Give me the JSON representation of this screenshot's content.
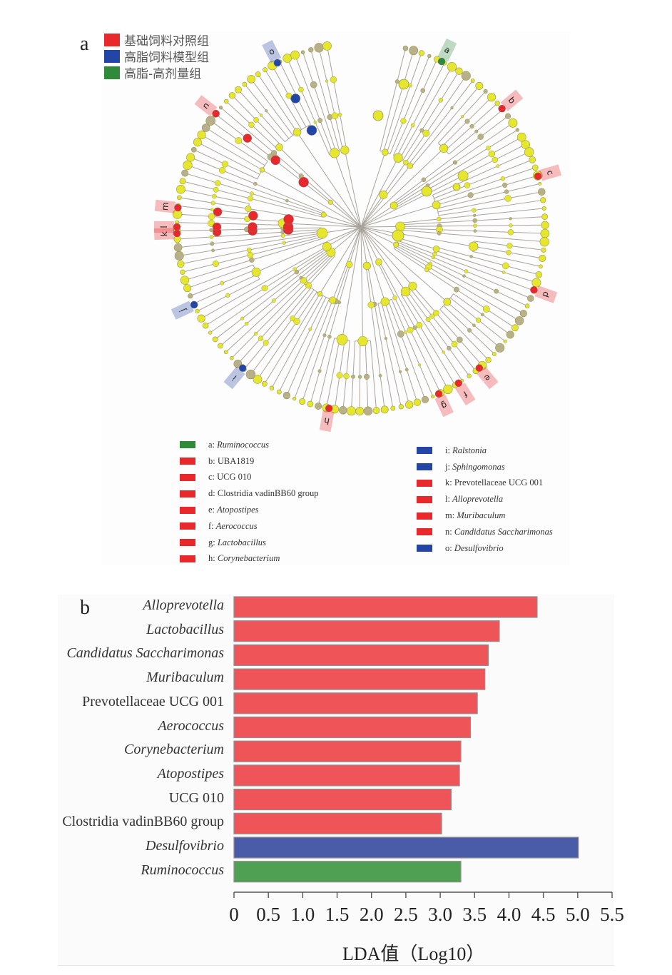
{
  "panel_a": {
    "letter": "a",
    "groups": [
      {
        "label": "基础饲料对照组",
        "color": "#e8282b"
      },
      {
        "label": "高脂饲料模型组",
        "color": "#2346a6"
      },
      {
        "label": "高脂-高剂量组",
        "color": "#2f8a3a"
      }
    ],
    "node_default_color": "#e6e62e",
    "branch_color": "#a9a39a",
    "highlighted_taxa": [
      {
        "key": "a",
        "name": "Ruminococcus",
        "italic": true,
        "color": "#2f8a3a",
        "angle_deg": 26
      },
      {
        "key": "b",
        "name": "UBA1819",
        "italic": false,
        "color": "#e8282b",
        "angle_deg": 50
      },
      {
        "key": "c",
        "name": "UCG 010",
        "italic": false,
        "color": "#e8282b",
        "angle_deg": 74
      },
      {
        "key": "d",
        "name": "Clostridia vadinBB60 group",
        "italic": false,
        "color": "#e8282b",
        "angle_deg": 110
      },
      {
        "key": "e",
        "name": "Atopostipes",
        "italic": true,
        "color": "#e8282b",
        "angle_deg": 140
      },
      {
        "key": "f",
        "name": "Aerococcus",
        "italic": true,
        "color": "#e8282b",
        "angle_deg": 148
      },
      {
        "key": "g",
        "name": "Lactobacillus",
        "italic": true,
        "color": "#e8282b",
        "angle_deg": 155
      },
      {
        "key": "h",
        "name": "Corynebacterium",
        "italic": true,
        "color": "#e8282b",
        "angle_deg": 190
      },
      {
        "key": "i",
        "name": "Ralstonia",
        "italic": true,
        "color": "#2346a6",
        "angle_deg": 220
      },
      {
        "key": "j",
        "name": "Sphingomonas",
        "italic": true,
        "color": "#2346a6",
        "angle_deg": 245
      },
      {
        "key": "k",
        "name": "Prevotellaceae UCG 001",
        "italic": false,
        "color": "#e8282b",
        "angle_deg": 268
      },
      {
        "key": "l",
        "name": "Alloprevotella",
        "italic": true,
        "color": "#e8282b",
        "angle_deg": 270
      },
      {
        "key": "m",
        "name": "Muribaculum",
        "italic": true,
        "color": "#e8282b",
        "angle_deg": 276
      },
      {
        "key": "n",
        "name": "Candidatus Saccharimonas",
        "italic": true,
        "color": "#e8282b",
        "angle_deg": 308
      },
      {
        "key": "o",
        "name": "Desulfovibrio",
        "italic": true,
        "color": "#2346a6",
        "angle_deg": 333
      }
    ]
  },
  "panel_b": {
    "letter": "b"
  },
  "chart_data": {
    "type": "bar",
    "orientation": "horizontal",
    "title": "",
    "xlabel": "LDA值（Log10）",
    "ylabel": "",
    "xlim": [
      0,
      5.5
    ],
    "x_ticks": [
      "0",
      "0.5",
      "1.0",
      "1.5",
      "2.0",
      "2.5",
      "3.0",
      "3.5",
      "4.0",
      "4.5",
      "5.0",
      "5.5"
    ],
    "x_tick_values": [
      0,
      0.5,
      1.0,
      1.5,
      2.0,
      2.5,
      3.0,
      3.5,
      4.0,
      4.5,
      5.0,
      5.5
    ],
    "grid": false,
    "legend": "none",
    "categories": [
      "Alloprevotella",
      "Lactobacillus",
      "Candidatus Saccharimonas",
      "Muribaculum",
      "Prevotellaceae  UCG  001",
      "Aerococcus",
      "Corynebacterium",
      "Atopostipes",
      "UCG 010",
      "Clostridia vadinBB60  group",
      "Desulfovibrio",
      "Ruminococcus"
    ],
    "italic": [
      true,
      true,
      true,
      true,
      false,
      true,
      true,
      true,
      false,
      false,
      true,
      true
    ],
    "values": [
      4.41,
      3.86,
      3.7,
      3.65,
      3.54,
      3.44,
      3.3,
      3.28,
      3.16,
      3.02,
      5.01,
      3.3
    ],
    "groups": [
      "基础饲料对照组",
      "基础饲料对照组",
      "基础饲料对照组",
      "基础饲料对照组",
      "基础饲料对照组",
      "基础饲料对照组",
      "基础饲料对照组",
      "基础饲料对照组",
      "基础饲料对照组",
      "基础饲料对照组",
      "高脂饲料模型组",
      "高脂-高剂量组"
    ],
    "colors": [
      "#ef5459",
      "#ef5459",
      "#ef5459",
      "#ef5459",
      "#ef5459",
      "#ef5459",
      "#ef5459",
      "#ef5459",
      "#ef5459",
      "#ef5459",
      "#4a5ba8",
      "#4fa052"
    ]
  }
}
